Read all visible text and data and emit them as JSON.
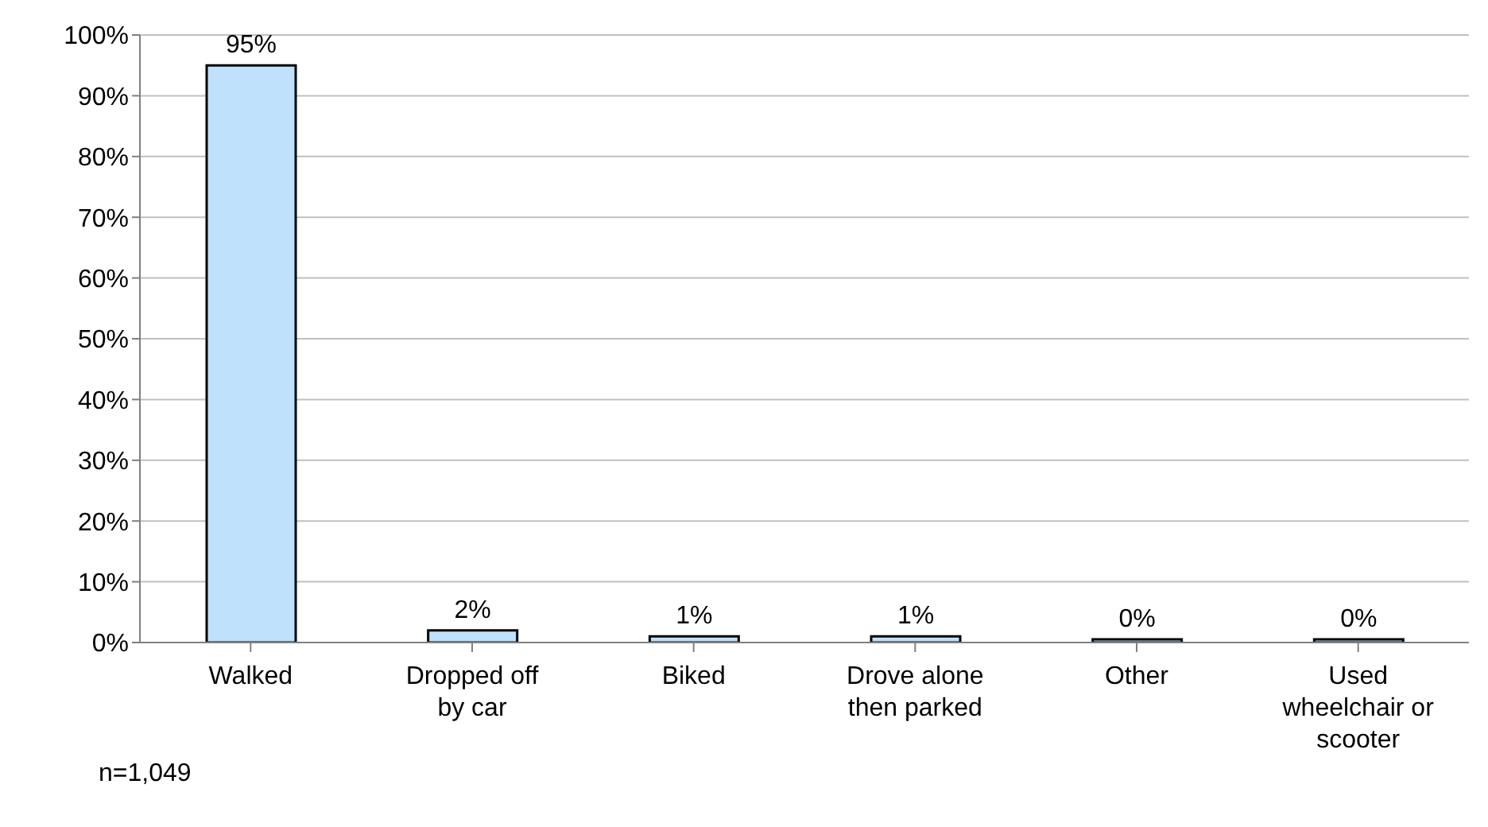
{
  "chart_data": {
    "type": "bar",
    "categories": [
      "Walked",
      "Dropped off by car",
      "Biked",
      "Drove alone then parked",
      "Other",
      "Used wheelchair or scooter"
    ],
    "values": [
      95,
      2,
      1,
      1,
      0,
      0
    ],
    "color": "#bfe1fb",
    "ylim": [
      0,
      100
    ],
    "yticks": [
      {
        "value": 0,
        "label": "0%"
      },
      {
        "value": 10,
        "label": "10%"
      },
      {
        "value": 20,
        "label": "20%"
      },
      {
        "value": 30,
        "label": "30%"
      },
      {
        "value": 40,
        "label": "40%"
      },
      {
        "value": 50,
        "label": "50%"
      },
      {
        "value": 60,
        "label": "60%"
      },
      {
        "value": 70,
        "label": "70%"
      },
      {
        "value": 80,
        "label": "80%"
      },
      {
        "value": 90,
        "label": "90%"
      },
      {
        "value": 100,
        "label": "100%"
      }
    ],
    "value_labels": [
      "95%",
      "2%",
      "1%",
      "1%",
      "0%",
      "0%"
    ],
    "grid": "y",
    "legend": false,
    "annotations": [
      "n=1,049"
    ]
  }
}
